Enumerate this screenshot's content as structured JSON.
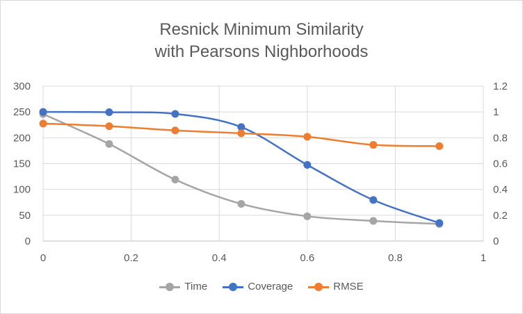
{
  "chart_data": {
    "type": "line",
    "title_lines": [
      "Resnick Minimum Similarity",
      "with Pearsons Nighborhoods"
    ],
    "x": [
      0,
      0.15,
      0.3,
      0.45,
      0.6,
      0.75,
      0.9
    ],
    "x_ticks": [
      "0",
      "0.2",
      "0.4",
      "0.6",
      "0.8",
      "1"
    ],
    "xlim": [
      0,
      1
    ],
    "y_left_ticks": [
      "0",
      "50",
      "100",
      "150",
      "200",
      "250",
      "300"
    ],
    "y_left_lim": [
      0,
      300
    ],
    "y_right_ticks": [
      "0",
      "0.2",
      "0.4",
      "0.6",
      "0.8",
      "1",
      "1.2"
    ],
    "y_right_lim": [
      0,
      1.2
    ],
    "grid": true,
    "legend_position": "bottom",
    "series": [
      {
        "name": "Time",
        "axis": "left",
        "color": "#a5a5a5",
        "values": [
          246,
          188,
          119,
          72,
          48,
          39,
          33
        ]
      },
      {
        "name": "Coverage",
        "axis": "right",
        "color": "#4472c4",
        "values": [
          1.0,
          0.998,
          0.985,
          0.883,
          0.59,
          0.318,
          0.14
        ]
      },
      {
        "name": "RMSE",
        "axis": "right",
        "color": "#ed7d31",
        "values": [
          0.91,
          0.89,
          0.857,
          0.835,
          0.808,
          0.745,
          0.735
        ]
      }
    ]
  }
}
